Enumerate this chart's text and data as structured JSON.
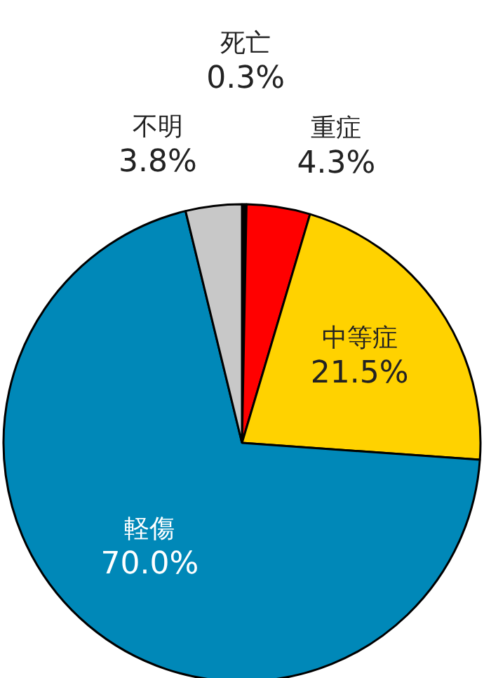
{
  "chart_data": {
    "type": "pie",
    "categories": [
      "死亡",
      "重症",
      "中等症",
      "軽傷",
      "不明"
    ],
    "values": [
      0.3,
      4.3,
      21.5,
      70.0,
      3.8
    ],
    "value_labels": [
      "0.3%",
      "4.3%",
      "21.5%",
      "70.0%",
      "3.8%"
    ],
    "colors": [
      "#000000",
      "#ff0000",
      "#ffd200",
      "#0088b8",
      "#c8c8c8"
    ]
  }
}
